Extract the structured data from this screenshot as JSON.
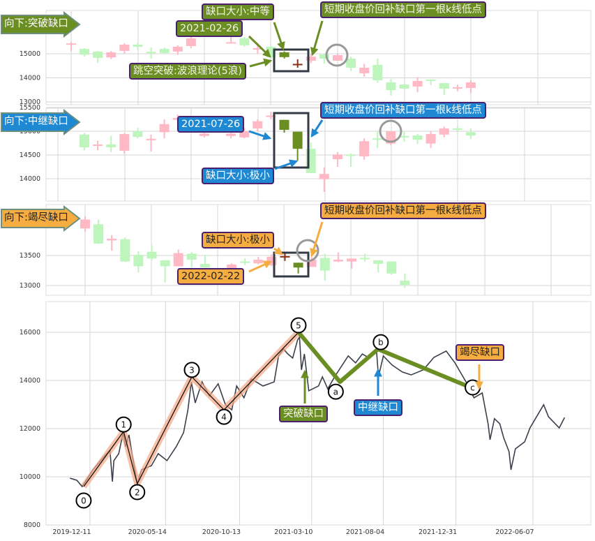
{
  "colors": {
    "up": "#ffb8c4",
    "down": "#bdf5bd",
    "gap_down": "#6b8e23",
    "gap_up": "#8b2f1a",
    "breakaway": "#6b8e23",
    "runaway": "#1f88d2",
    "exhaustion": "#f5ac40",
    "impulse": "#f4a582",
    "correction": "#6b8e23",
    "price": "#3a3f4b"
  },
  "panels": [
    {
      "tag": "向下:突破缺口",
      "theme": "breakaway",
      "gap_size": "缺口大小:中等",
      "date": "2021-02-26",
      "extra": "跳空突破:波浪理论(5浪)",
      "refill": "短期收盘价回补缺口第一根k线低点",
      "yticks": [
        13000,
        14000,
        15000
      ],
      "ylim": [
        12950,
        16900
      ],
      "gap_candle_indices": [
        16,
        17
      ],
      "refill_index": 20,
      "candles": [
        [
          15380,
          15430,
          15490,
          15110
        ],
        [
          15200,
          14960,
          15230,
          14880
        ],
        [
          15090,
          14830,
          15120,
          14620
        ],
        [
          14850,
          15060,
          15120,
          14780
        ],
        [
          15120,
          15380,
          15430,
          15000
        ],
        [
          15380,
          15290,
          15440,
          15150
        ],
        [
          15080,
          15050,
          15270,
          14800
        ],
        [
          15200,
          15030,
          15260,
          14980
        ],
        [
          15090,
          15290,
          15350,
          14950
        ],
        [
          15320,
          15640,
          15700,
          15230
        ],
        null,
        null,
        [
          15450,
          15480,
          15780,
          15430
        ],
        [
          15640,
          15350,
          15700,
          15300
        ],
        [
          15200,
          15230,
          15450,
          15000
        ],
        [
          15290,
          14850,
          15350,
          14800
        ],
        [
          15060,
          14860,
          15100,
          14800
        ],
        [
          14550,
          14580,
          14770,
          14420
        ],
        [
          14710,
          14880,
          14990,
          14610
        ],
        [
          14970,
          14800,
          15000,
          14590
        ],
        [
          14710,
          14940,
          15000,
          14710
        ],
        [
          14800,
          14420,
          14880,
          14280
        ],
        [
          14190,
          14420,
          14580,
          14050
        ],
        [
          14540,
          13900,
          14800,
          13800
        ],
        [
          13810,
          13490,
          13960,
          13260
        ],
        [
          13720,
          13550,
          13750,
          13550
        ],
        [
          13640,
          13870,
          14030,
          13400
        ],
        [
          13930,
          13900,
          13930,
          13700
        ],
        [
          13780,
          13550,
          13780,
          13290
        ],
        [
          13580,
          13610,
          13720,
          13440
        ],
        [
          13580,
          13810,
          13900,
          13380
        ]
      ]
    },
    {
      "tag": "向下:中继缺口",
      "theme": "runaway",
      "gap_size": "缺口大小:极小",
      "date": "2021-07-26",
      "refill": "短期收盘价回补缺口第一根k线低点",
      "yticks": [
        14000,
        14500,
        15000,
        15500
      ],
      "ylim": [
        13550,
        15500
      ],
      "gap_candle_indices": [
        15,
        16
      ],
      "refill_index": 23,
      "candles": [
        [
          14930,
          14660,
          14960,
          14600
        ],
        [
          14690,
          14720,
          14800,
          14600
        ],
        [
          14720,
          14660,
          14900,
          14560
        ],
        [
          14590,
          14940,
          14960,
          14530
        ],
        [
          15000,
          14880,
          15070,
          14850
        ],
        [
          14810,
          14840,
          14930,
          14570
        ],
        [
          14980,
          15150,
          15250,
          14850
        ],
        [
          15240,
          15280,
          15350,
          15200
        ],
        null,
        [
          14900,
          14950,
          15000,
          14870
        ],
        null,
        [
          14900,
          14950,
          15000,
          14850
        ],
        [
          14870,
          15000,
          15070,
          14850
        ],
        [
          15060,
          15210,
          15250,
          15000
        ],
        [
          15300,
          15330,
          15410,
          15250
        ],
        [
          15240,
          15030,
          15240,
          14970
        ],
        [
          14990,
          14630,
          14990,
          14380
        ],
        [
          14630,
          14120,
          14760,
          14120
        ],
        [
          13990,
          14100,
          14240,
          13720
        ],
        [
          14410,
          14510,
          14560,
          14250
        ],
        [
          14510,
          14500,
          14530,
          14250
        ],
        [
          14470,
          14790,
          14850,
          14400
        ],
        [
          14850,
          14830,
          15000,
          14640
        ],
        [
          14740,
          15000,
          15000,
          14700
        ],
        [
          14900,
          14880,
          15000,
          14780
        ],
        [
          14910,
          14820,
          14940,
          14730
        ],
        [
          14740,
          14940,
          15000,
          14650
        ],
        [
          14930,
          15060,
          15100,
          14870
        ],
        [
          15060,
          15040,
          15100,
          14980
        ],
        [
          14980,
          14910,
          15060,
          14840
        ]
      ]
    },
    {
      "tag": "向下:竭尽缺口",
      "theme": "exhaustion",
      "gap_size": "缺口大小:极小",
      "date": "2022-02-22",
      "refill": "短期收盘价回补缺口第一根k线低点",
      "yticks": [
        13000,
        13500
      ],
      "ylim": [
        12850,
        14350
      ],
      "gap_candle_indices": [
        15,
        16
      ],
      "refill_index": 17,
      "candles": [
        [
          13950,
          14100,
          14150,
          13900
        ],
        [
          14020,
          13700,
          14100,
          13690
        ],
        [
          13750,
          13780,
          13840,
          13580
        ],
        [
          13770,
          13400,
          13800,
          13390
        ],
        [
          13510,
          13320,
          13570,
          13220
        ],
        [
          13560,
          13450,
          13680,
          13420
        ],
        [
          13420,
          13320,
          13420,
          13050
        ],
        [
          13320,
          13540,
          13600,
          13320
        ],
        [
          13530,
          13430,
          13560,
          13300
        ],
        [
          13360,
          13300,
          13510,
          13300
        ],
        null,
        [
          13290,
          13350,
          13370,
          13280
        ],
        [
          13400,
          13390,
          13450,
          13340
        ],
        [
          13370,
          13430,
          13480,
          13350
        ],
        [
          13340,
          13480,
          13520,
          13320
        ],
        [
          13470,
          13490,
          13530,
          13410
        ],
        [
          13380,
          13300,
          13380,
          13200
        ],
        [
          13310,
          13430,
          13480,
          13310
        ],
        [
          13460,
          13250,
          13530,
          13080
        ],
        [
          13400,
          13430,
          13550,
          13390
        ],
        [
          13400,
          13450,
          13450,
          13280
        ],
        [
          13460,
          13450,
          13530,
          13400
        ],
        [
          13420,
          13360,
          13420,
          13220
        ],
        [
          13400,
          13200,
          13400,
          13180
        ],
        [
          13080,
          13010,
          13200,
          12960
        ]
      ]
    }
  ],
  "chart_data": {
    "type": "line",
    "yticks": [
      8000,
      10000,
      12000,
      14000,
      16000
    ],
    "ylim": [
      8000,
      17200
    ],
    "xticks": [
      "2019-12-11",
      "2020-05-14",
      "2020-10-13",
      "2021-03-10",
      "2021-08-04",
      "2021-12-31",
      "2022-06-07"
    ],
    "grid": true,
    "price": [
      [
        "2019-10-31",
        9940
      ],
      [
        "2019-11-14",
        9855
      ],
      [
        "2019-11-25",
        9594
      ],
      [
        "2019-12-17",
        10290
      ],
      [
        "2020-01-10",
        10870
      ],
      [
        "2020-01-21",
        11100
      ],
      [
        "2020-01-26",
        9800
      ],
      [
        "2020-01-29",
        10670
      ],
      [
        "2020-02-08",
        10960
      ],
      [
        "2020-02-17",
        11830
      ],
      [
        "2020-02-22",
        11250
      ],
      [
        "2020-02-29",
        11740
      ],
      [
        "2020-03-07",
        10870
      ],
      [
        "2020-03-17",
        9710
      ],
      [
        "2020-03-26",
        10290
      ],
      [
        "2020-04-15",
        10460
      ],
      [
        "2020-04-29",
        10960
      ],
      [
        "2020-05-17",
        10670
      ],
      [
        "2020-06-05",
        11250
      ],
      [
        "2020-06-20",
        11830
      ],
      [
        "2020-06-29",
        12780
      ],
      [
        "2020-07-06",
        13940
      ],
      [
        "2020-07-14",
        13070
      ],
      [
        "2020-07-28",
        13940
      ],
      [
        "2020-08-12",
        13360
      ],
      [
        "2020-08-30",
        13860
      ],
      [
        "2020-09-14",
        12990
      ],
      [
        "2020-09-27",
        12780
      ],
      [
        "2020-10-07",
        13770
      ],
      [
        "2020-10-22",
        13280
      ],
      [
        "2020-11-06",
        14060
      ],
      [
        "2020-11-30",
        13770
      ],
      [
        "2020-12-23",
        13940
      ],
      [
        "2021-01-01",
        15020
      ],
      [
        "2021-01-11",
        15310
      ],
      [
        "2021-01-20",
        15100
      ],
      [
        "2021-01-30",
        14930
      ],
      [
        "2021-02-09",
        15680
      ],
      [
        "2021-02-13",
        15800
      ],
      [
        "2021-02-17",
        14440
      ],
      [
        "2021-02-23",
        15100
      ],
      [
        "2021-03-04",
        13570
      ],
      [
        "2021-03-24",
        13770
      ],
      [
        "2021-04-01",
        14150
      ],
      [
        "2021-04-12",
        13650
      ],
      [
        "2021-04-26",
        14150
      ],
      [
        "2021-05-24",
        15020
      ],
      [
        "2021-06-08",
        14730
      ],
      [
        "2021-06-22",
        15100
      ],
      [
        "2021-07-06",
        14930
      ],
      [
        "2021-07-21",
        15250
      ],
      [
        "2021-07-25",
        14150
      ],
      [
        "2021-08-04",
        15020
      ],
      [
        "2021-08-22",
        14640
      ],
      [
        "2021-09-12",
        14350
      ],
      [
        "2021-09-30",
        14230
      ],
      [
        "2021-10-25",
        14440
      ],
      [
        "2021-11-16",
        14960
      ],
      [
        "2021-12-11",
        15220
      ],
      [
        "2021-12-29",
        14730
      ],
      [
        "2022-01-23",
        13860
      ],
      [
        "2022-02-06",
        13280
      ],
      [
        "2022-02-23",
        13480
      ],
      [
        "2022-03-07",
        12200
      ],
      [
        "2022-03-11",
        11540
      ],
      [
        "2022-03-20",
        12410
      ],
      [
        "2022-03-31",
        12200
      ],
      [
        "2022-04-08",
        11620
      ],
      [
        "2022-04-19",
        11040
      ],
      [
        "2022-04-23",
        10290
      ],
      [
        "2022-05-02",
        11160
      ],
      [
        "2022-05-21",
        11450
      ],
      [
        "2022-06-01",
        12030
      ],
      [
        "2022-06-29",
        12990
      ],
      [
        "2022-07-09",
        12490
      ],
      [
        "2022-07-31",
        12030
      ],
      [
        "2022-08-11",
        12460
      ]
    ],
    "waves": [
      {
        "label": "0",
        "date": "2019-11-28",
        "value": 9594
      },
      {
        "label": "1",
        "date": "2020-02-18",
        "value": 11880
      },
      {
        "label": "2",
        "date": "2020-03-17",
        "value": 9710
      },
      {
        "label": "3",
        "date": "2020-07-07",
        "value": 14150
      },
      {
        "label": "4",
        "date": "2020-09-11",
        "value": 12780
      },
      {
        "label": "5",
        "date": "2021-02-11",
        "value": 16000
      },
      {
        "label": "a",
        "date": "2021-05-07",
        "value": 13940
      },
      {
        "label": "b",
        "date": "2021-07-24",
        "value": 15300
      },
      {
        "label": "c",
        "date": "2022-01-30",
        "value": 13710
      }
    ],
    "gap_markers": [
      {
        "label": "突破缺口",
        "theme": "breakaway",
        "date": "2021-02-17"
      },
      {
        "label": "中继缺口",
        "theme": "runaway",
        "date": "2021-07-26"
      },
      {
        "label": "竭尽缺口",
        "theme": "exhaustion",
        "date": "2022-02-22"
      }
    ]
  }
}
